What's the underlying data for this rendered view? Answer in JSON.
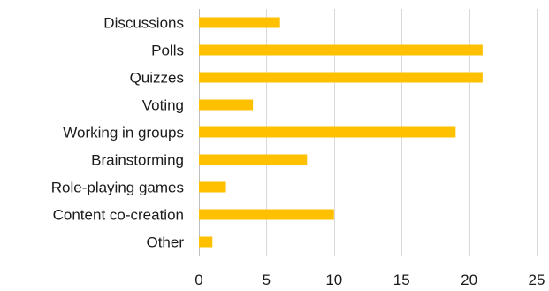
{
  "chart_data": {
    "type": "bar",
    "orientation": "horizontal",
    "categories": [
      "Discussions",
      "Polls",
      "Quizzes",
      "Voting",
      "Working in groups",
      "Brainstorming",
      "Role-playing games",
      "Content co-creation",
      "Other"
    ],
    "values": [
      6,
      21,
      21,
      4,
      19,
      8,
      2,
      10,
      1
    ],
    "xlim": [
      0,
      25
    ],
    "x_ticks": [
      0,
      5,
      10,
      15,
      20,
      25
    ],
    "grid": "vertical",
    "bar_color": "#FFC000",
    "title": "",
    "xlabel": "",
    "ylabel": ""
  }
}
